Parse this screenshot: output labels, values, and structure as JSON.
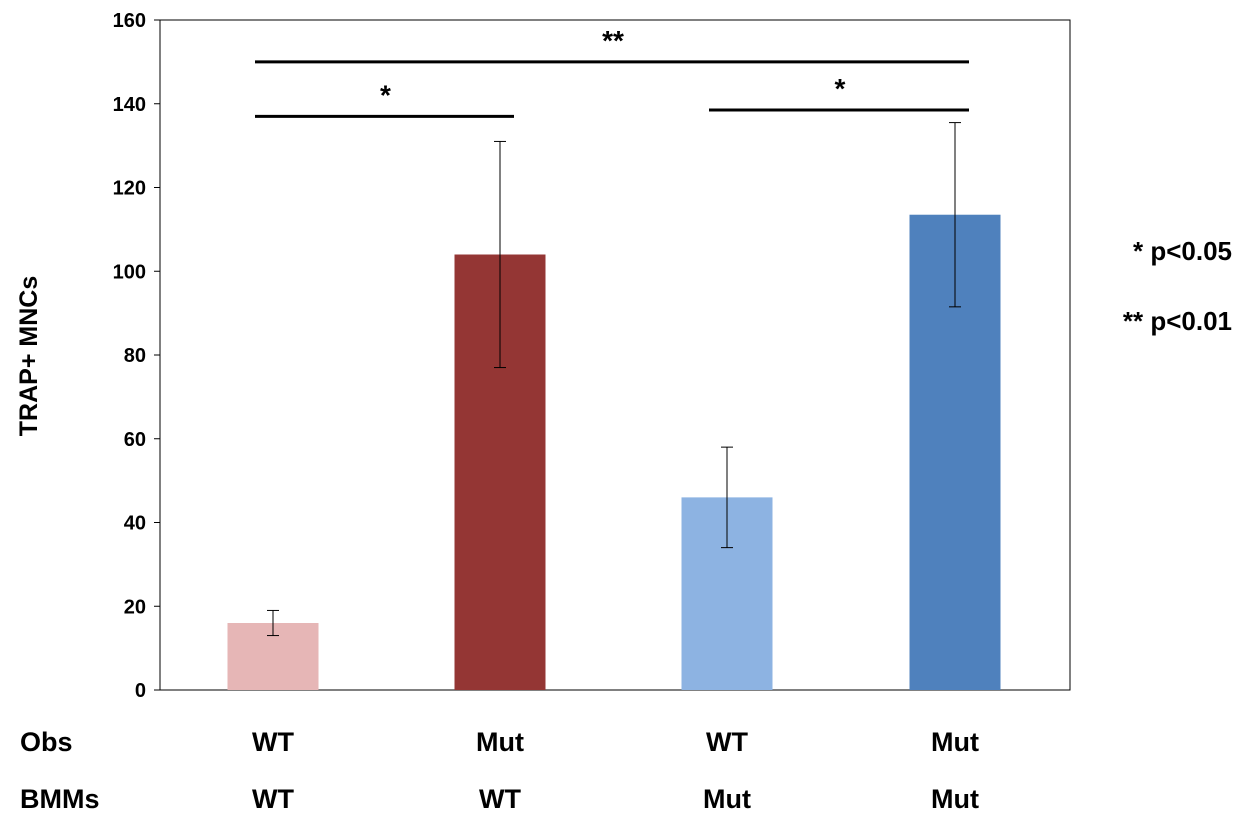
{
  "chart_data": {
    "type": "bar",
    "ylabel": "TRAP+ MNCs",
    "ylim": [
      0,
      160
    ],
    "yticks": [
      0,
      20,
      40,
      60,
      80,
      100,
      120,
      140,
      160
    ],
    "grid": false,
    "categories": [
      "WT / WT",
      "Mut / WT",
      "WT / Mut",
      "Mut / Mut"
    ],
    "values": [
      16,
      104,
      46,
      113.5
    ],
    "errors": [
      3,
      27,
      12,
      22
    ],
    "bar_colors": [
      "#E6B6B6",
      "#943634",
      "#8DB3E2",
      "#4F81BD"
    ],
    "category_rows": [
      {
        "label": "Obs",
        "values": [
          "WT",
          "Mut",
          "WT",
          "Mut"
        ]
      },
      {
        "label": "BMMs",
        "values": [
          "WT",
          "WT",
          "Mut",
          "Mut"
        ]
      }
    ],
    "significance": [
      {
        "from": 0,
        "to": 1,
        "y": 137,
        "label": "*"
      },
      {
        "from": 2,
        "to": 3,
        "y": 138.5,
        "label": "*"
      },
      {
        "from": 0,
        "to": 3,
        "y": 150,
        "label": "**"
      }
    ],
    "legend": [
      "* p<0.05",
      "** p<0.01"
    ]
  }
}
